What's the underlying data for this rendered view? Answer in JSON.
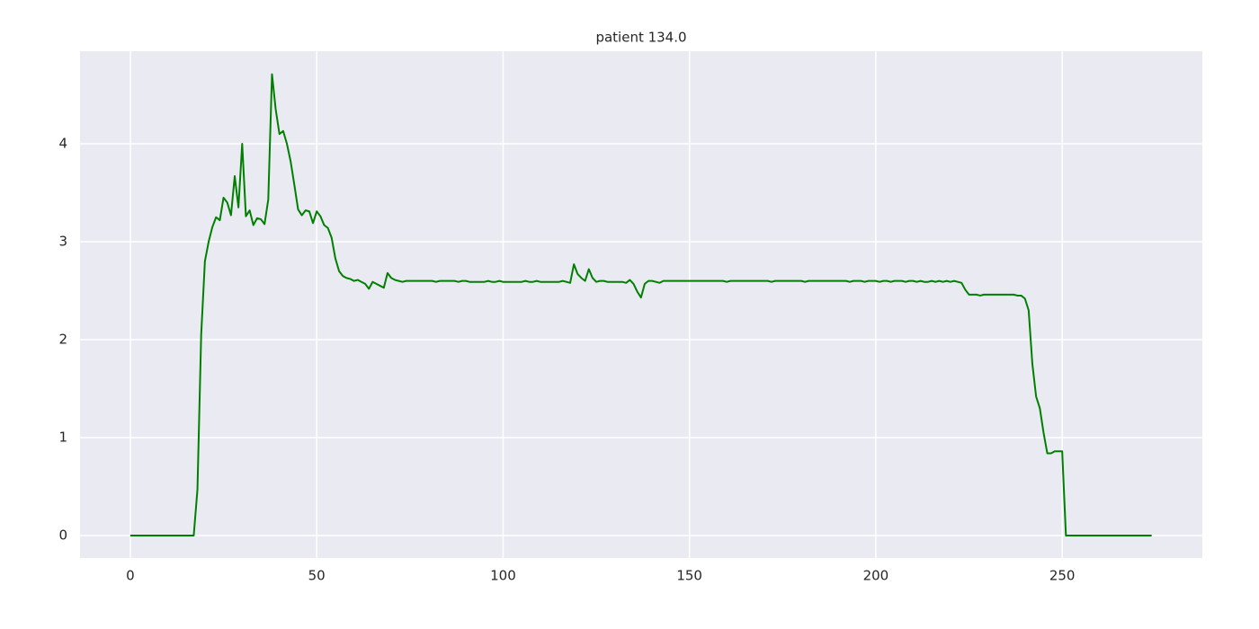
{
  "chart_data": {
    "type": "line",
    "title": "patient 134.0",
    "x": [
      0,
      1,
      2,
      3,
      4,
      5,
      6,
      7,
      8,
      9,
      10,
      11,
      12,
      13,
      14,
      15,
      16,
      17,
      18,
      19,
      20,
      21,
      22,
      23,
      24,
      25,
      26,
      27,
      28,
      29,
      30,
      31,
      32,
      33,
      34,
      35,
      36,
      37,
      38,
      39,
      40,
      41,
      42,
      43,
      44,
      45,
      46,
      47,
      48,
      49,
      50,
      51,
      52,
      53,
      54,
      55,
      56,
      57,
      58,
      59,
      60,
      61,
      62,
      63,
      64,
      65,
      66,
      67,
      68,
      69,
      70,
      71,
      72,
      73,
      74,
      75,
      76,
      77,
      78,
      79,
      80,
      81,
      82,
      83,
      84,
      85,
      86,
      87,
      88,
      89,
      90,
      91,
      92,
      93,
      94,
      95,
      96,
      97,
      98,
      99,
      100,
      101,
      102,
      103,
      104,
      105,
      106,
      107,
      108,
      109,
      110,
      111,
      112,
      113,
      114,
      115,
      116,
      117,
      118,
      119,
      120,
      121,
      122,
      123,
      124,
      125,
      126,
      127,
      128,
      129,
      130,
      131,
      132,
      133,
      134,
      135,
      136,
      137,
      138,
      139,
      140,
      141,
      142,
      143,
      144,
      145,
      146,
      147,
      148,
      149,
      150,
      151,
      152,
      153,
      154,
      155,
      156,
      157,
      158,
      159,
      160,
      161,
      162,
      163,
      164,
      165,
      166,
      167,
      168,
      169,
      170,
      171,
      172,
      173,
      174,
      175,
      176,
      177,
      178,
      179,
      180,
      181,
      182,
      183,
      184,
      185,
      186,
      187,
      188,
      189,
      190,
      191,
      192,
      193,
      194,
      195,
      196,
      197,
      198,
      199,
      200,
      201,
      202,
      203,
      204,
      205,
      206,
      207,
      208,
      209,
      210,
      211,
      212,
      213,
      214,
      215,
      216,
      217,
      218,
      219,
      220,
      221,
      222,
      223,
      224,
      225,
      226,
      227,
      228,
      229,
      230,
      231,
      232,
      233,
      234,
      235,
      236,
      237,
      238,
      239,
      240,
      241,
      242,
      243,
      244,
      245,
      246,
      247,
      248,
      249,
      250,
      251,
      252,
      253,
      254,
      255,
      256,
      257,
      258,
      259,
      260,
      261,
      262,
      263,
      264,
      265,
      266,
      267,
      268,
      269,
      270,
      271,
      272,
      273,
      274
    ],
    "series": [
      {
        "color": "#008000",
        "values": [
          0,
          0,
          0,
          0,
          0,
          0,
          0,
          0,
          0,
          0,
          0,
          0,
          0,
          0,
          0,
          0,
          0,
          0,
          0.47,
          2.05,
          2.8,
          3.0,
          3.15,
          3.25,
          3.22,
          3.45,
          3.4,
          3.27,
          3.67,
          3.35,
          4.0,
          3.26,
          3.32,
          3.17,
          3.24,
          3.23,
          3.18,
          3.43,
          4.71,
          4.35,
          4.1,
          4.13,
          4.0,
          3.82,
          3.58,
          3.33,
          3.27,
          3.32,
          3.31,
          3.19,
          3.31,
          3.26,
          3.17,
          3.14,
          3.04,
          2.83,
          2.7,
          2.65,
          2.63,
          2.62,
          2.6,
          2.61,
          2.59,
          2.57,
          2.52,
          2.59,
          2.57,
          2.55,
          2.53,
          2.68,
          2.63,
          2.61,
          2.6,
          2.59,
          2.6,
          2.6,
          2.6,
          2.6,
          2.6,
          2.6,
          2.6,
          2.6,
          2.59,
          2.6,
          2.6,
          2.6,
          2.6,
          2.6,
          2.59,
          2.6,
          2.6,
          2.59,
          2.59,
          2.59,
          2.59,
          2.59,
          2.6,
          2.59,
          2.59,
          2.6,
          2.59,
          2.59,
          2.59,
          2.59,
          2.59,
          2.59,
          2.6,
          2.59,
          2.59,
          2.6,
          2.59,
          2.59,
          2.59,
          2.59,
          2.59,
          2.59,
          2.6,
          2.59,
          2.58,
          2.77,
          2.67,
          2.63,
          2.6,
          2.72,
          2.63,
          2.59,
          2.6,
          2.6,
          2.59,
          2.59,
          2.59,
          2.59,
          2.59,
          2.58,
          2.61,
          2.57,
          2.49,
          2.43,
          2.57,
          2.6,
          2.6,
          2.59,
          2.58,
          2.6,
          2.6,
          2.6,
          2.6,
          2.6,
          2.6,
          2.6,
          2.6,
          2.6,
          2.6,
          2.6,
          2.6,
          2.6,
          2.6,
          2.6,
          2.6,
          2.6,
          2.59,
          2.6,
          2.6,
          2.6,
          2.6,
          2.6,
          2.6,
          2.6,
          2.6,
          2.6,
          2.6,
          2.6,
          2.59,
          2.6,
          2.6,
          2.6,
          2.6,
          2.6,
          2.6,
          2.6,
          2.6,
          2.59,
          2.6,
          2.6,
          2.6,
          2.6,
          2.6,
          2.6,
          2.6,
          2.6,
          2.6,
          2.6,
          2.6,
          2.59,
          2.6,
          2.6,
          2.6,
          2.59,
          2.6,
          2.6,
          2.6,
          2.59,
          2.6,
          2.6,
          2.59,
          2.6,
          2.6,
          2.6,
          2.59,
          2.6,
          2.6,
          2.59,
          2.6,
          2.59,
          2.59,
          2.6,
          2.59,
          2.6,
          2.59,
          2.6,
          2.59,
          2.6,
          2.59,
          2.58,
          2.51,
          2.46,
          2.46,
          2.46,
          2.45,
          2.46,
          2.46,
          2.46,
          2.46,
          2.46,
          2.46,
          2.46,
          2.46,
          2.46,
          2.45,
          2.45,
          2.42,
          2.3,
          1.75,
          1.42,
          1.3,
          1.05,
          0.84,
          0.84,
          0.86,
          0.86,
          0.86,
          0,
          0,
          0,
          0,
          0,
          0,
          0,
          0,
          0,
          0,
          0,
          0,
          0,
          0,
          0,
          0,
          0,
          0,
          0,
          0,
          0,
          0,
          0,
          0
        ]
      }
    ],
    "xlim": [
      -13.5,
      287.6
    ],
    "ylim": [
      -0.229,
      4.945
    ],
    "xticks": [
      0,
      50,
      100,
      150,
      200,
      250
    ],
    "yticks": [
      0,
      1,
      2,
      3,
      4
    ],
    "grid": true
  }
}
